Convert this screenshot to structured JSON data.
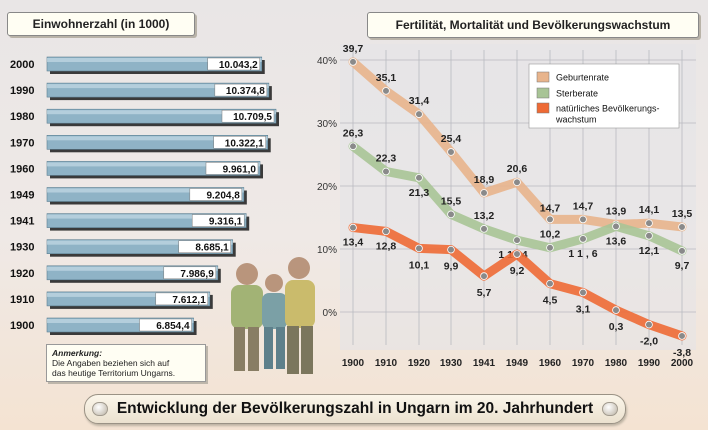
{
  "main_title": "Entwicklung der Bevölkerungszahl in Ungarn im 20. Jahrhundert",
  "note": {
    "heading": "Anmerkung:",
    "line1": "Die Angaben beziehen sich auf",
    "line2": "das heutige Territorium Ungarns."
  },
  "colors": {
    "bar": "#8fb3c6",
    "geburtenrate": "#e8b48c",
    "sterberate": "#a8c496",
    "wachstum": "#ee6a35",
    "marker": "#8a8a8a"
  },
  "chart_data": [
    {
      "type": "bar",
      "orientation": "horizontal",
      "title": "Einwohnerzahl (in 1000)",
      "categories": [
        "2000",
        "1990",
        "1980",
        "1970",
        "1960",
        "1949",
        "1941",
        "1930",
        "1920",
        "1910",
        "1900"
      ],
      "values": [
        10043.2,
        10374.8,
        10709.5,
        10322.1,
        9961.0,
        9204.8,
        9316.1,
        8685.1,
        7986.9,
        7612.1,
        6854.4
      ],
      "value_labels": [
        "10.043,2",
        "10.374,8",
        "10.709,5",
        "10.322,1",
        "9.961,0",
        "9.204,8",
        "9.316,1",
        "8.685,1",
        "7.986,9",
        "7.612,1",
        "6.854,4"
      ]
    },
    {
      "type": "line",
      "title": "Fertilität, Mortalität und Bevölkerungswachstum",
      "x": [
        "1900",
        "1910",
        "1920",
        "1930",
        "1941",
        "1949",
        "1960",
        "1970",
        "1980",
        "1990",
        "2000"
      ],
      "ylim": [
        -5,
        40
      ],
      "yticks": [
        0,
        10,
        20,
        30,
        40
      ],
      "ytick_labels": [
        "0%",
        "10%",
        "20%",
        "30%",
        "40%"
      ],
      "grid": true,
      "legend_position": "top-right",
      "series": [
        {
          "name": "Geburtenrate",
          "values": [
            39.7,
            35.1,
            31.4,
            25.4,
            18.9,
            20.6,
            14.7,
            14.7,
            13.9,
            14.1,
            13.5
          ],
          "labels": [
            "39,7",
            "35,1",
            "31,4",
            "25,4",
            "18,9",
            "20,6",
            "14,7",
            "14,7",
            "13,9",
            "14,1",
            "13,5"
          ]
        },
        {
          "name": "Sterberate",
          "values": [
            26.3,
            22.3,
            21.3,
            15.5,
            13.2,
            11.4,
            10.2,
            11.6,
            13.6,
            12.1,
            9.7
          ],
          "labels": [
            "26,3",
            "22,3",
            "21,3",
            "15,5",
            "13,2",
            "1 1 , 4",
            "10,2",
            "1 1 , 6",
            "13,6",
            "12,1",
            "9,7"
          ]
        },
        {
          "name": "natürliches Bevölkerungs-",
          "name_line2": "wachstum",
          "values": [
            13.4,
            12.8,
            10.1,
            9.9,
            5.7,
            9.2,
            4.5,
            3.1,
            0.3,
            -2.0,
            -3.8
          ],
          "labels": [
            "13,4",
            "12,8",
            "10,1",
            "9,9",
            "5,7",
            "9,2",
            "4,5",
            "3,1",
            "0,3",
            "-2,0",
            "-3,8"
          ]
        }
      ]
    }
  ]
}
